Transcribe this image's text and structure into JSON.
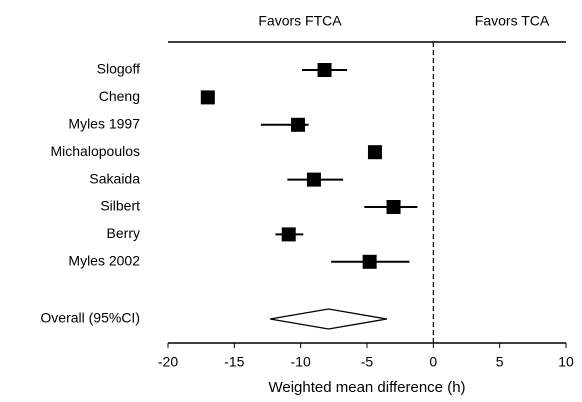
{
  "chart_data": {
    "type": "forest",
    "favors_left": "Favors FTCA",
    "favors_right": "Favors TCA",
    "categories": [
      "Slogoff",
      "Cheng",
      "Myles 1997",
      "Michalopoulos",
      "Sakaida",
      "Silbert",
      "Berry",
      "Myles 2002"
    ],
    "values": [
      -8.2,
      -17.0,
      -10.2,
      -4.4,
      -9.0,
      -3.0,
      -10.9,
      -4.8
    ],
    "ci_low": [
      -9.9,
      -17.3,
      -13.0,
      -4.6,
      -11.0,
      -5.2,
      -11.9,
      -7.7
    ],
    "ci_high": [
      -6.5,
      -16.7,
      -9.4,
      -4.2,
      -6.8,
      -1.2,
      -9.8,
      -1.8
    ],
    "overall": {
      "label": "Overall (95%CI)",
      "value": -7.9,
      "low": -12.3,
      "high": -3.5
    },
    "xlabel": "Weighted mean difference (h)",
    "xlim": [
      -20,
      10
    ],
    "xticks": [
      -20,
      -15,
      -10,
      -5,
      0,
      5,
      10
    ],
    "color": "#000000"
  }
}
